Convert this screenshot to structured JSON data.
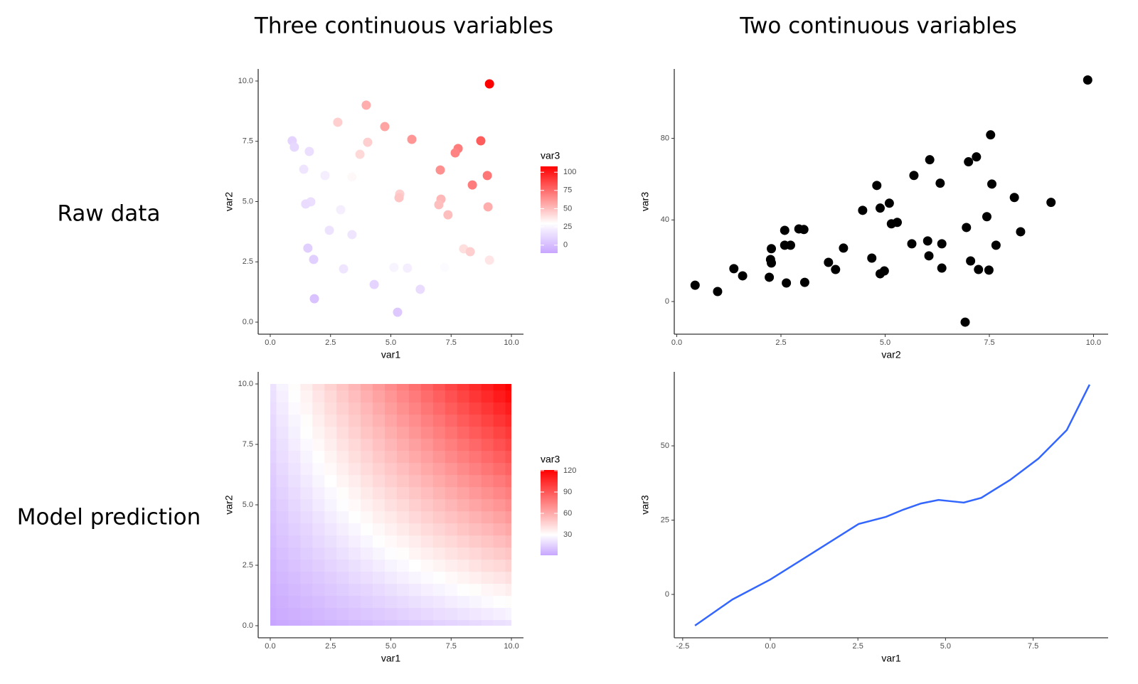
{
  "column_titles": [
    "Three continuous variables",
    "Two continuous variables"
  ],
  "row_titles": [
    "Raw data",
    "Model prediction"
  ],
  "chart_data": [
    {
      "type": "scatter",
      "x_label": "var1",
      "y_label": "var2",
      "x": [
        9.09,
        3.98,
        2.8,
        4.75,
        5.87,
        8.73,
        0.91,
        4.04,
        1.0,
        7.79,
        7.67,
        1.62,
        3.72,
        1.39,
        7.05,
        2.27,
        9.0,
        3.39,
        8.38,
        5.37,
        5.34,
        7.08,
        1.68,
        1.47,
        6.99,
        9.03,
        2.92,
        7.37,
        4.45,
        2.45,
        3.39,
        1.56,
        8.02,
        8.29,
        1.8,
        9.09,
        3.04,
        5.13,
        5.69,
        7.23,
        4.31,
        6.22,
        1.83,
        5.28
      ],
      "y": [
        9.88,
        9.0,
        8.29,
        8.11,
        7.58,
        7.52,
        7.52,
        7.46,
        7.26,
        7.2,
        7.02,
        7.08,
        6.96,
        6.34,
        6.31,
        6.08,
        6.08,
        6.02,
        5.69,
        5.31,
        5.16,
        5.1,
        4.99,
        4.9,
        4.87,
        4.78,
        4.66,
        4.45,
        3.98,
        3.81,
        3.63,
        3.07,
        3.04,
        2.92,
        2.6,
        2.57,
        2.21,
        2.27,
        2.24,
        2.27,
        1.56,
        1.36,
        0.97,
        0.41
      ],
      "color_values": [
        108,
        55,
        45,
        58,
        62,
        80,
        10,
        45,
        12,
        70,
        68,
        15,
        42,
        18,
        64,
        22,
        72,
        32,
        70,
        45,
        48,
        52,
        15,
        14,
        50,
        55,
        22,
        50,
        30,
        17,
        18,
        8,
        40,
        45,
        8,
        38,
        18,
        25,
        22,
        28,
        10,
        14,
        2,
        5
      ],
      "colorbar": {
        "title": "var3",
        "ticks": [
          0,
          25,
          50,
          75,
          100
        ],
        "lim": [
          -11,
          108
        ],
        "midpoint": 30,
        "colors": [
          "#c8a6ff",
          "#ffffff",
          "#ff0000"
        ]
      },
      "xlim": [
        -0.5,
        10.5
      ],
      "ylim": [
        -0.5,
        10.5
      ],
      "xticks": [
        {
          "value": 0,
          "label": "0.0"
        },
        2.5,
        {
          "value": 5,
          "label": "5.0"
        },
        7.5,
        {
          "value": 10,
          "label": "10.0"
        }
      ],
      "yticks": [
        {
          "value": 0,
          "label": "0.0"
        },
        2.5,
        {
          "value": 5,
          "label": "5.0"
        },
        7.5,
        {
          "value": 10,
          "label": "10.0"
        }
      ]
    },
    {
      "type": "scatter",
      "x_label": "var2",
      "y_label": "var3",
      "color": "#000000",
      "x": [
        9.86,
        7.53,
        6.07,
        7.19,
        7.0,
        5.69,
        4.8,
        6.32,
        7.56,
        8.1,
        8.98,
        5.1,
        4.88,
        4.46,
        7.44,
        5.29,
        5.15,
        6.95,
        2.93,
        3.05,
        2.59,
        8.25,
        6.02,
        5.64,
        6.36,
        2.59,
        2.73,
        7.66,
        2.27,
        4.0,
        6.05,
        4.68,
        2.25,
        7.05,
        3.64,
        2.27,
        1.37,
        3.81,
        6.36,
        7.24,
        7.49,
        4.98,
        4.88,
        1.58,
        2.22,
        0.44,
        2.63,
        3.07,
        0.98,
        6.92
      ],
      "y": [
        108.6,
        81.7,
        69.5,
        70.9,
        68.5,
        61.8,
        56.9,
        58.0,
        57.6,
        51.0,
        48.6,
        48.2,
        45.8,
        44.7,
        41.6,
        38.8,
        38.1,
        36.3,
        35.6,
        35.3,
        34.9,
        34.2,
        29.7,
        28.3,
        28.3,
        27.6,
        27.6,
        27.6,
        25.9,
        26.2,
        22.4,
        21.3,
        20.6,
        19.9,
        19.2,
        18.9,
        16.1,
        15.7,
        16.4,
        15.7,
        15.4,
        15.0,
        13.6,
        12.6,
        11.9,
        8.0,
        9.1,
        9.4,
        4.9,
        -10.1
      ],
      "xlim": [
        -0.06,
        10.35
      ],
      "ylim": [
        -16,
        114
      ],
      "xticks": [
        {
          "value": 0,
          "label": "0.0"
        },
        2.5,
        {
          "value": 5,
          "label": "5.0"
        },
        7.5,
        {
          "value": 10,
          "label": "10.0"
        }
      ],
      "yticks": [
        0,
        40,
        80
      ]
    },
    {
      "type": "heatmap",
      "x_label": "var1",
      "y_label": "var2",
      "x": [
        0,
        0.5,
        1,
        1.5,
        2,
        2.5,
        3,
        3.5,
        4,
        4.5,
        5,
        5.5,
        6,
        6.5,
        7,
        7.5,
        8,
        8.5,
        9,
        9.5,
        10
      ],
      "y": [
        0,
        0.5,
        1,
        1.5,
        2,
        2.5,
        3,
        3.5,
        4,
        4.5,
        5,
        5.5,
        6,
        6.5,
        7,
        7.5,
        8,
        8.5,
        9,
        9.5,
        10
      ],
      "values": [
        [
          1,
          2,
          3,
          4,
          5,
          6,
          7,
          8,
          9,
          10,
          11,
          12,
          13,
          14,
          15,
          16,
          17,
          18,
          19,
          20,
          21
        ],
        [
          2,
          3.2,
          4.4,
          5.6,
          6.8,
          8,
          9.2,
          10.4,
          11.6,
          12.8,
          14,
          15.2,
          16.4,
          17.6,
          18.8,
          20,
          21.2,
          22.4,
          23.6,
          24.8,
          26
        ],
        [
          3,
          4.4,
          5.8,
          7.2,
          8.6,
          10,
          11.4,
          12.8,
          14.2,
          15.6,
          17,
          18.4,
          19.8,
          21.2,
          22.6,
          24,
          25.4,
          26.8,
          28.2,
          29.6,
          31
        ],
        [
          4,
          5.6,
          7.2,
          8.8,
          10.4,
          12,
          13.6,
          15.2,
          16.8,
          18.4,
          20,
          21.6,
          23.2,
          24.8,
          26.4,
          28,
          29.6,
          31.2,
          32.8,
          34.4,
          36
        ],
        [
          5,
          6.8,
          8.6,
          10.4,
          12.2,
          14,
          15.8,
          17.6,
          19.4,
          21.2,
          23,
          24.8,
          26.6,
          28.4,
          30.2,
          32,
          33.8,
          35.6,
          37.4,
          39.2,
          41
        ],
        [
          6,
          8,
          10,
          12,
          14,
          16,
          18,
          20,
          22,
          24,
          26,
          28,
          30,
          32,
          34,
          36,
          38,
          40,
          42,
          44,
          46
        ],
        [
          7,
          9.2,
          11.4,
          13.6,
          15.8,
          18,
          20.2,
          22.4,
          24.6,
          26.8,
          29,
          31.2,
          33.4,
          35.6,
          37.8,
          40,
          42.2,
          44.4,
          46.6,
          48.8,
          51
        ],
        [
          8,
          10.4,
          12.8,
          15.2,
          17.6,
          20,
          22.4,
          24.8,
          27.2,
          29.6,
          32,
          34.4,
          36.8,
          39.2,
          41.6,
          44,
          46.4,
          48.8,
          51.2,
          53.6,
          56
        ],
        [
          9,
          11.6,
          14.2,
          16.8,
          19.4,
          22,
          24.6,
          27.2,
          29.8,
          32.4,
          35,
          37.6,
          40.2,
          42.8,
          45.4,
          48,
          50.6,
          53.2,
          55.8,
          58.4,
          61
        ],
        [
          10,
          12.8,
          15.6,
          18.4,
          21.2,
          24,
          26.8,
          29.6,
          32.4,
          35.2,
          38,
          40.8,
          43.6,
          46.4,
          49.2,
          52,
          54.8,
          57.6,
          60.4,
          63.2,
          66
        ],
        [
          11,
          14,
          17,
          20,
          23,
          26,
          29,
          32,
          35,
          38,
          41,
          44,
          47,
          50,
          53,
          56,
          59,
          62,
          65,
          68,
          71
        ],
        [
          12,
          15.2,
          18.4,
          21.6,
          24.8,
          28,
          31.2,
          34.4,
          37.6,
          40.8,
          44,
          47.2,
          50.4,
          53.6,
          56.8,
          60,
          63.2,
          66.4,
          69.6,
          72.8,
          76
        ],
        [
          13,
          16.4,
          19.8,
          23.2,
          26.6,
          30,
          33.4,
          36.8,
          40.2,
          43.6,
          47,
          50.4,
          53.8,
          57.2,
          60.6,
          64,
          67.4,
          70.8,
          74.2,
          77.6,
          81
        ],
        [
          14,
          17.6,
          21.2,
          24.8,
          28.4,
          32,
          35.6,
          39.2,
          42.8,
          46.4,
          50,
          53.6,
          57.2,
          60.8,
          64.4,
          68,
          71.6,
          75.2,
          78.8,
          82.4,
          86
        ],
        [
          15,
          18.8,
          22.6,
          26.4,
          30.2,
          34,
          37.8,
          41.6,
          45.4,
          49.2,
          53,
          56.8,
          60.6,
          64.4,
          68.2,
          72,
          75.8,
          79.6,
          83.4,
          87.2,
          91
        ],
        [
          16,
          20,
          24,
          28,
          32,
          36,
          40,
          44,
          48,
          52,
          56,
          60,
          64,
          68,
          72,
          76,
          80,
          84,
          88,
          92,
          96
        ],
        [
          17,
          21.2,
          25.4,
          29.6,
          33.8,
          38,
          42.2,
          46.4,
          50.6,
          54.8,
          59,
          63.2,
          67.4,
          71.6,
          75.8,
          80,
          84.2,
          88.4,
          92.6,
          96.8,
          101
        ],
        [
          18,
          22.4,
          26.8,
          31.2,
          35.6,
          40,
          44.4,
          48.8,
          53.2,
          57.6,
          62,
          66.4,
          70.8,
          75.2,
          79.6,
          84,
          88.4,
          92.8,
          97.2,
          101.6,
          106
        ],
        [
          19,
          23.6,
          28.2,
          32.8,
          37.4,
          42,
          46.6,
          51.2,
          55.8,
          60.4,
          65,
          69.6,
          74.2,
          78.8,
          83.4,
          88,
          92.6,
          97.2,
          101.8,
          106.4,
          111
        ],
        [
          20,
          24.8,
          29.6,
          34.4,
          39.2,
          44,
          48.8,
          53.6,
          58.4,
          63.2,
          68,
          72.8,
          77.6,
          82.4,
          87.2,
          92,
          96.8,
          101.6,
          106.4,
          111.2,
          116
        ],
        [
          21,
          26,
          31,
          36,
          41,
          46,
          51,
          56,
          61,
          66,
          71,
          76,
          81,
          86,
          91,
          96,
          101,
          106,
          111,
          116,
          121
        ]
      ],
      "colorbar": {
        "title": "var3",
        "ticks": [
          30,
          60,
          90,
          120
        ],
        "lim": [
          1,
          121
        ],
        "midpoint": 30,
        "colors": [
          "#c8a6ff",
          "#ffffff",
          "#ff0000"
        ]
      },
      "xlim": [
        -0.5,
        10.5
      ],
      "ylim": [
        -0.5,
        10.5
      ],
      "xticks": [
        {
          "value": 0,
          "label": "0.0"
        },
        2.5,
        {
          "value": 5,
          "label": "5.0"
        },
        7.5,
        {
          "value": 10,
          "label": "10.0"
        }
      ],
      "yticks": [
        {
          "value": 0,
          "label": "0.0"
        },
        2.5,
        {
          "value": 5,
          "label": "5.0"
        },
        7.5,
        {
          "value": 10,
          "label": "10.0"
        }
      ]
    },
    {
      "type": "line",
      "x_label": "var1",
      "y_label": "var3",
      "color": "#3366ff",
      "x": [
        -2.15,
        -1.08,
        0,
        1.16,
        2.52,
        3.3,
        3.79,
        4.3,
        4.8,
        5.2,
        5.52,
        6.02,
        6.84,
        7.65,
        8.46,
        9.11
      ],
      "y": [
        -10.5,
        -1.7,
        5.0,
        13.6,
        23.7,
        26.1,
        28.5,
        30.6,
        31.8,
        31.3,
        30.9,
        32.5,
        38.5,
        45.7,
        55.3,
        70.6
      ],
      "xlim": [
        -2.74,
        9.64
      ],
      "ylim": [
        -14.6,
        74.9
      ],
      "xticks": [
        -2.5,
        {
          "value": 0,
          "label": "0.0"
        },
        2.5,
        {
          "value": 5,
          "label": "5.0"
        },
        7.5
      ],
      "yticks": [
        0,
        25,
        50
      ]
    }
  ]
}
